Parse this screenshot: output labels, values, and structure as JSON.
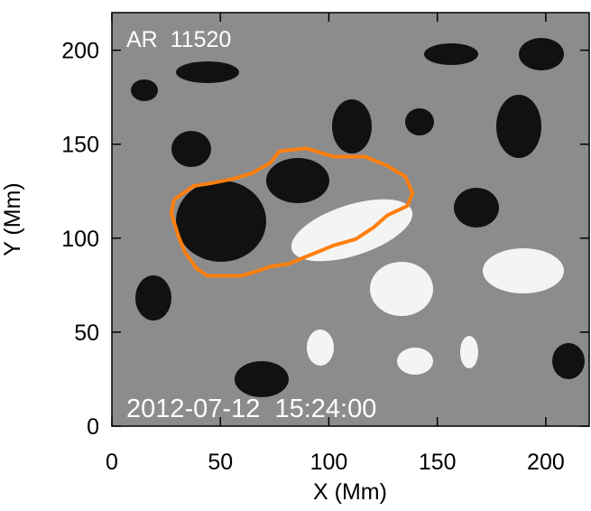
{
  "chart_data": {
    "type": "contour",
    "annotations": [
      "AR  11520",
      "2012-07-12  15:24:00"
    ],
    "xlabel": "X (Mm)",
    "ylabel": "Y (Mm)",
    "xlim": [
      0,
      220
    ],
    "ylim": [
      0,
      220
    ],
    "xticks": [
      0,
      50,
      100,
      150,
      200
    ],
    "yticks": [
      0,
      50,
      100,
      150,
      200
    ],
    "series": [
      {
        "color": "#ff7f0e",
        "x": [
          28.6,
          37.8,
          46.1,
          56.4,
          64.7,
          73.0,
          77.2,
          89.6,
          102.1,
          116.6,
          127.0,
          135.3,
          138.6,
          136.1,
          127.0,
          120.7,
          112.4,
          102.1,
          91.7,
          81.3,
          73.0,
          66.8,
          59.8,
          44.0,
          39.0,
          33.6,
          30.7,
          27.4,
          28.6
        ],
        "y": [
          120.5,
          127.8,
          129.3,
          131.7,
          134.6,
          140.0,
          146.3,
          147.8,
          143.4,
          143.4,
          138.5,
          132.7,
          123.9,
          117.1,
          112.2,
          105.8,
          99.5,
          96.1,
          91.2,
          86.3,
          84.9,
          82.4,
          80.0,
          80.0,
          83.9,
          92.7,
          101.0,
          113.2,
          120.5
        ]
      }
    ]
  }
}
